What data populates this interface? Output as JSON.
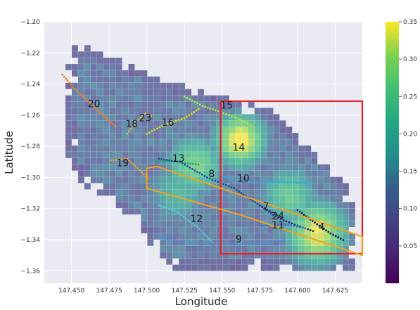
{
  "chart_data": {
    "type": "heatmap",
    "xlabel": "Longitude",
    "ylabel": "Latitude",
    "xlim": [
      147.432,
      147.643
    ],
    "ylim": [
      -1.368,
      -1.2
    ],
    "xticks": [
      "147.450",
      "147.475",
      "147.500",
      "147.525",
      "147.550",
      "147.575",
      "147.600",
      "147.625"
    ],
    "yticks": [
      "-1.20",
      "-1.22",
      "-1.24",
      "-1.26",
      "-1.28",
      "-1.30",
      "-1.32",
      "-1.34",
      "-1.36"
    ],
    "colorbar": {
      "colormap": "viridis",
      "min": 0.0,
      "max": 0.35,
      "ticks": [
        "0.05",
        "0.10",
        "0.15",
        "0.20",
        "0.25",
        "0.30",
        "0.35"
      ]
    },
    "grid": true,
    "background_color": "#eaeaf2",
    "cell_labels": [
      {
        "text": "20",
        "lon": 147.465,
        "lat": -1.253
      },
      {
        "text": "23",
        "lon": 147.499,
        "lat": -1.262
      },
      {
        "text": "18",
        "lon": 147.49,
        "lat": -1.266
      },
      {
        "text": "16",
        "lon": 147.514,
        "lat": -1.265
      },
      {
        "text": "15",
        "lon": 147.553,
        "lat": -1.254
      },
      {
        "text": "14",
        "lon": 147.561,
        "lat": -1.281
      },
      {
        "text": "19",
        "lon": 147.484,
        "lat": -1.291
      },
      {
        "text": "13",
        "lon": 147.521,
        "lat": -1.288
      },
      {
        "text": "8",
        "lon": 147.543,
        "lat": -1.298
      },
      {
        "text": "10",
        "lon": 147.564,
        "lat": -1.301
      },
      {
        "text": "7",
        "lon": 147.579,
        "lat": -1.319
      },
      {
        "text": "24",
        "lon": 147.587,
        "lat": -1.325
      },
      {
        "text": "11",
        "lon": 147.587,
        "lat": -1.331
      },
      {
        "text": "4",
        "lon": 147.616,
        "lat": -1.332
      },
      {
        "text": "12",
        "lon": 147.533,
        "lat": -1.327
      },
      {
        "text": "9",
        "lon": 147.561,
        "lat": -1.34
      }
    ],
    "red_rectangle": {
      "lon": [
        147.549,
        147.643
      ],
      "lat": [
        -1.349,
        -1.251
      ],
      "color": "#e8212b"
    },
    "orange_polygon": {
      "color": "#f3a218",
      "points": [
        [
          147.5,
          -1.294
        ],
        [
          147.507,
          -1.293
        ],
        [
          147.643,
          -1.338
        ],
        [
          147.643,
          -1.35
        ],
        [
          147.562,
          -1.324
        ],
        [
          147.5,
          -1.307
        ]
      ]
    },
    "trajectories": [
      {
        "id": "20",
        "color": "#f07f1c",
        "points": [
          [
            147.444,
            -1.234
          ],
          [
            147.452,
            -1.243
          ],
          [
            147.462,
            -1.252
          ],
          [
            147.471,
            -1.26
          ],
          [
            147.48,
            -1.268
          ]
        ]
      },
      {
        "id": "18",
        "color": "#e0b53a",
        "points": [
          [
            147.487,
            -1.272
          ],
          [
            147.493,
            -1.264
          ],
          [
            147.499,
            -1.259
          ],
          [
            147.505,
            -1.261
          ]
        ]
      },
      {
        "id": "16",
        "color": "#d4e21f",
        "points": [
          [
            147.5,
            -1.272
          ],
          [
            147.512,
            -1.266
          ],
          [
            147.525,
            -1.262
          ],
          [
            147.536,
            -1.255
          ]
        ]
      },
      {
        "id": "15",
        "color": "#bfe22f",
        "points": [
          [
            147.525,
            -1.248
          ],
          [
            147.537,
            -1.254
          ],
          [
            147.549,
            -1.258
          ],
          [
            147.56,
            -1.262
          ],
          [
            147.572,
            -1.268
          ]
        ]
      },
      {
        "id": "19",
        "color": "#f0a42a",
        "points": [
          [
            147.476,
            -1.289
          ],
          [
            147.487,
            -1.288
          ],
          [
            147.494,
            -1.294
          ],
          [
            147.502,
            -1.302
          ]
        ]
      },
      {
        "id": "13",
        "color": "#20a486",
        "points": [
          [
            147.505,
            -1.289
          ],
          [
            147.52,
            -1.29
          ],
          [
            147.536,
            -1.292
          ]
        ]
      },
      {
        "id": "8",
        "color": "#1f4e9c",
        "points": [
          [
            147.508,
            -1.288
          ],
          [
            147.522,
            -1.29
          ],
          [
            147.54,
            -1.3
          ],
          [
            147.558,
            -1.307
          ],
          [
            147.575,
            -1.318
          ],
          [
            147.59,
            -1.326
          ]
        ]
      },
      {
        "id": "10",
        "color": "#29afd8",
        "points": [
          [
            147.548,
            -1.299
          ],
          [
            147.568,
            -1.303
          ],
          [
            147.588,
            -1.303
          ],
          [
            147.61,
            -1.304
          ]
        ]
      },
      {
        "id": "12",
        "color": "#55c8d6",
        "points": [
          [
            147.508,
            -1.318
          ],
          [
            147.52,
            -1.322
          ],
          [
            147.535,
            -1.333
          ],
          [
            147.545,
            -1.343
          ]
        ]
      },
      {
        "id": "9",
        "color": "#4a90d9",
        "points": [
          [
            147.509,
            -1.339
          ],
          [
            147.53,
            -1.342
          ],
          [
            147.555,
            -1.343
          ],
          [
            147.575,
            -1.343
          ],
          [
            147.593,
            -1.34
          ]
        ]
      },
      {
        "id": "7",
        "color": "#2d2a6d",
        "points": [
          [
            147.575,
            -1.318
          ],
          [
            147.587,
            -1.326
          ],
          [
            147.6,
            -1.331
          ],
          [
            147.612,
            -1.335
          ]
        ]
      },
      {
        "id": "11",
        "color": "#3c6ed0",
        "points": [
          [
            147.576,
            -1.331
          ],
          [
            147.592,
            -1.33
          ],
          [
            147.607,
            -1.333
          ]
        ]
      },
      {
        "id": "4",
        "color": "#14124a",
        "points": [
          [
            147.6,
            -1.321
          ],
          [
            147.61,
            -1.328
          ],
          [
            147.622,
            -1.336
          ],
          [
            147.632,
            -1.341
          ]
        ]
      }
    ]
  }
}
